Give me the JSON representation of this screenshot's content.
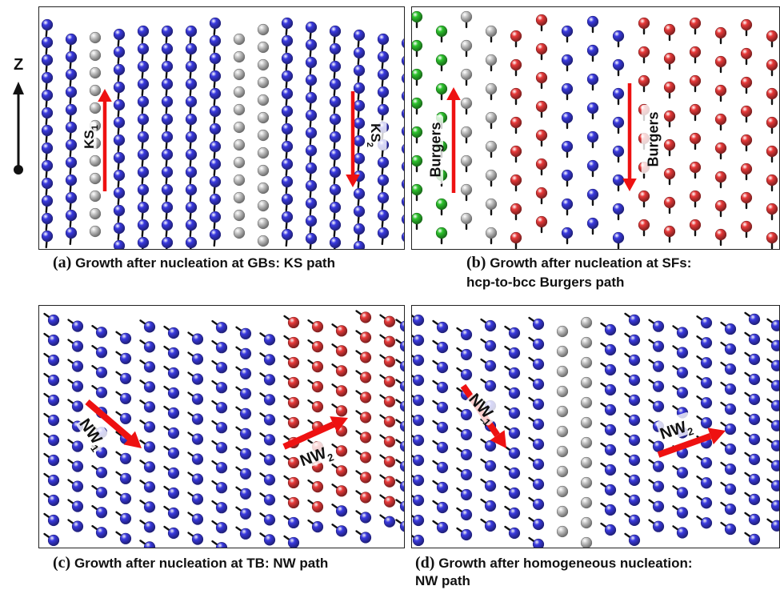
{
  "axis": {
    "label": "Z"
  },
  "colors": {
    "blue": "#3a3ae0",
    "gray": "#c8c8c8",
    "red": "#e83a3a",
    "green": "#2ec42e",
    "arrow": "#ee1111",
    "stick": "#111111"
  },
  "panels": [
    {
      "id": "a",
      "letter": "(a)",
      "caption_lines": [
        "Growth after nucleation at GBs: KS path"
      ],
      "arrows": [
        {
          "label": "KS",
          "sub": "1",
          "direction": "up"
        },
        {
          "label": "KS",
          "sub": "2",
          "direction": "down"
        }
      ]
    },
    {
      "id": "b",
      "letter": "(b)",
      "caption_lines": [
        "Growth after nucleation at SFs:",
        "hcp-to-bcc Burgers path"
      ],
      "arrows": [
        {
          "label": "Burgers",
          "sub": "",
          "direction": "up"
        },
        {
          "label": "Burgers",
          "sub": "",
          "direction": "down"
        }
      ]
    },
    {
      "id": "c",
      "letter": "(c)",
      "caption_lines": [
        "Growth after nucleation at TB: NW path"
      ],
      "arrows": [
        {
          "label": "NW",
          "sub": "1",
          "direction": "down-right"
        },
        {
          "label": "NW",
          "sub": "2",
          "direction": "up-right"
        }
      ]
    },
    {
      "id": "d",
      "letter": "(d)",
      "caption_lines": [
        "Growth after homogeneous nucleation:",
        "NW path"
      ],
      "arrows": [
        {
          "label": "NW",
          "sub": "1",
          "direction": "down-right"
        },
        {
          "label": "NW",
          "sub": "2",
          "direction": "up-right"
        }
      ]
    }
  ]
}
